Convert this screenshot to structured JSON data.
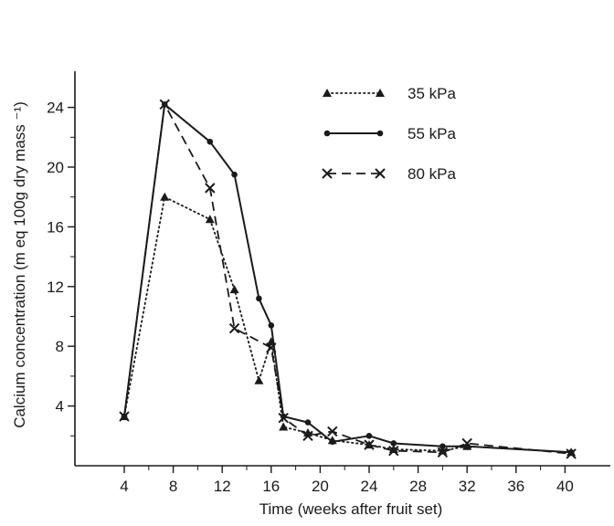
{
  "chart_data": {
    "type": "line",
    "xlabel": "Time (weeks after fruit set)",
    "ylabel": "Calcium concentration (m eq 100g dry mass ⁻¹)",
    "x_ticks": [
      4,
      8,
      12,
      16,
      20,
      24,
      28,
      32,
      36,
      40
    ],
    "y_ticks": [
      4,
      8,
      12,
      16,
      20,
      24
    ],
    "xlim": [
      0,
      42
    ],
    "ylim": [
      0,
      26
    ],
    "grid": false,
    "legend_position": "top-right",
    "series": [
      {
        "name": "35 kPa",
        "line_style": "dotted",
        "marker": "triangle",
        "x": [
          4,
          7.3,
          11,
          13,
          15,
          16,
          17,
          19,
          21,
          24,
          26,
          30,
          32,
          40.5
        ],
        "y": [
          3.3,
          18,
          16.5,
          11.8,
          5.7,
          8.3,
          2.6,
          2.2,
          1.7,
          1.4,
          1.1,
          1.0,
          1.3,
          0.9
        ]
      },
      {
        "name": "55 kPa",
        "line_style": "solid",
        "marker": "circle",
        "x": [
          4,
          7.3,
          11,
          13,
          15,
          16,
          17,
          19,
          21,
          24,
          26,
          30,
          32,
          40.5
        ],
        "y": [
          3.3,
          24.2,
          21.7,
          19.5,
          11.2,
          9.4,
          3.3,
          2.9,
          1.6,
          2.0,
          1.5,
          1.3,
          1.3,
          0.9
        ]
      },
      {
        "name": "80 kPa",
        "line_style": "dashed",
        "marker": "x",
        "x": [
          4,
          7.3,
          11,
          13,
          16,
          17,
          19,
          21,
          24,
          26,
          30,
          32,
          40.5
        ],
        "y": [
          3.3,
          24.2,
          18.6,
          9.2,
          7.9,
          3.2,
          2.0,
          2.3,
          1.4,
          1.0,
          0.9,
          1.5,
          0.8
        ]
      }
    ]
  }
}
